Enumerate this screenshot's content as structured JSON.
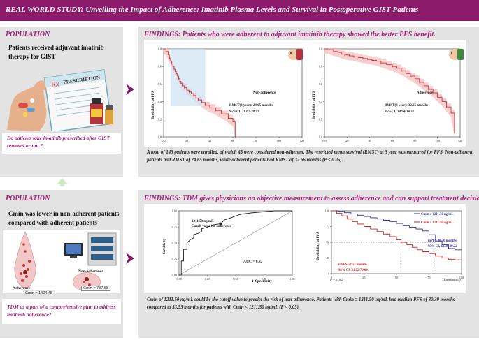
{
  "banner": {
    "title": "REAL WORLD STUDY: Unveiling the Impact of Adherence: Imatinib Plasma Levels and Survival in Postoperative GIST Patients"
  },
  "population1": {
    "title": "POPULATION",
    "text": "Patients received adjuvant imatinib therapy for GIST",
    "prescription_label": "PRESCRIPTION",
    "rx_label": "Rx",
    "question": "Do patients take imatinib prescribed after GIST removal or not ?"
  },
  "findings1": {
    "title": "FINDINGS: Patients who were adherent to adjuvant imatinib therapy showed the better PFS benefit.",
    "caption": "A total of 143 patients were enrolled, of which 45 were considered non-adherent. The restricted mean survival (RMST) at 3 year was measured for PFS. Non-adherent patients had RMST of 24.65 months, while adherent patients had RMST of 32.66 months (P < 0.05)."
  },
  "population2": {
    "title": "POPULATION",
    "text": "Cmin was lower in non-adherent patients compared with adherent patients",
    "adherence_label": "Adherence",
    "adherence_cmean": "C̄min = 1404.45",
    "non_adherence_label": "Non-adherence",
    "non_adherence_cmean": "C̄min = 737.68",
    "question": "TDM as a part of a comprehensive plan to address imatinib adherence?"
  },
  "findings2": {
    "title": "FINDINGS: TDM gives physicians an objective measurement to assess adherence and can support treatment decisions.",
    "caption": "Cmin of 1211.50 ng/mL could be the cutoff value to predict the risk of non-adherence. Patients with Cmin ≥ 1211.50 ng/mL had median PFS of 80.30 months compared to 53.53 months for patients with Cmin < 1211.50 ng/mL (P < 0.05)."
  },
  "chart_data": [
    {
      "type": "line",
      "name": "km-non-adherence",
      "ylabel": "Probability of PFS",
      "x_ticks": [
        "0.0",
        "20",
        "40",
        "60",
        "80",
        "100",
        "120"
      ],
      "y_ticks": [
        "0.0",
        "0.2",
        "0.4",
        "0.6",
        "0.8",
        "1.0"
      ],
      "xlim": [
        0,
        120
      ],
      "ylim": [
        0,
        1
      ],
      "group_label": "Non-adherence",
      "annotation": [
        "RMST(3 year): 24.65 months",
        "95%CI, 21.07-28.22"
      ],
      "x": [
        0,
        2,
        4,
        5,
        6,
        7,
        8,
        9,
        10,
        11,
        12,
        13,
        14,
        15,
        16,
        18,
        20,
        22,
        24,
        26,
        28,
        30,
        33,
        36,
        40,
        45,
        50,
        56,
        60,
        62
      ],
      "y": [
        1.0,
        0.97,
        0.93,
        0.89,
        0.86,
        0.83,
        0.8,
        0.77,
        0.74,
        0.72,
        0.69,
        0.66,
        0.63,
        0.61,
        0.58,
        0.56,
        0.53,
        0.51,
        0.49,
        0.47,
        0.44,
        0.42,
        0.39,
        0.36,
        0.33,
        0.3,
        0.26,
        0.21,
        0.17,
        0.0
      ]
    },
    {
      "type": "line",
      "name": "km-adherence",
      "ylabel": "Probability of PFS",
      "x_ticks": [
        "0.0",
        "20",
        "40",
        "60",
        "80",
        "100",
        "120"
      ],
      "y_ticks": [
        "0.0",
        "0.2",
        "0.4",
        "0.6",
        "0.8",
        "1.0"
      ],
      "xlim": [
        0,
        120
      ],
      "ylim": [
        0,
        1
      ],
      "group_label": "Adherence",
      "annotation": [
        "RMST(3 year): 32.66 months",
        "95%CI, 30.94-34.37"
      ],
      "x": [
        0,
        4,
        8,
        12,
        15,
        18,
        22,
        26,
        30,
        34,
        38,
        42,
        46,
        50,
        55,
        60,
        64,
        68,
        72,
        76,
        80,
        84,
        88,
        92,
        96,
        100,
        104,
        108,
        112,
        115
      ],
      "y": [
        1.0,
        0.99,
        0.97,
        0.96,
        0.94,
        0.93,
        0.92,
        0.91,
        0.9,
        0.89,
        0.88,
        0.87,
        0.86,
        0.84,
        0.82,
        0.8,
        0.78,
        0.75,
        0.72,
        0.69,
        0.66,
        0.62,
        0.58,
        0.54,
        0.5,
        0.45,
        0.4,
        0.34,
        0.27,
        0.05
      ]
    },
    {
      "type": "line",
      "name": "roc",
      "ylabel": "Sensitivity",
      "xlabel": "1-Specificity",
      "x_ticks": [
        "0.00",
        "0.25",
        "0.50",
        "0.75",
        "1.00"
      ],
      "y_ticks": [
        "0.00",
        "0.25",
        "0.50",
        "0.75",
        "1.00"
      ],
      "xlim": [
        0,
        1
      ],
      "ylim": [
        0,
        1
      ],
      "auc_label": "AUC = 0.82",
      "cutoff_label": [
        "1211.50 ng/mL",
        "Cutoff value for adherence"
      ],
      "cutoff_point": [
        0.37,
        0.8
      ],
      "x": [
        0,
        0.02,
        0.02,
        0.04,
        0.04,
        0.07,
        0.07,
        0.1,
        0.13,
        0.13,
        0.17,
        0.2,
        0.2,
        0.24,
        0.27,
        0.3,
        0.33,
        0.37,
        0.4,
        0.44,
        0.47,
        0.5,
        0.53,
        0.56,
        0.6,
        0.65,
        0.72,
        0.78,
        0.85,
        0.92,
        1.0
      ],
      "y": [
        0,
        0,
        0.22,
        0.22,
        0.4,
        0.4,
        0.5,
        0.55,
        0.58,
        0.63,
        0.65,
        0.68,
        0.72,
        0.74,
        0.76,
        0.78,
        0.79,
        0.8,
        0.86,
        0.88,
        0.9,
        0.92,
        0.94,
        0.95,
        0.96,
        0.97,
        0.98,
        0.99,
        1.0,
        1.0,
        1.0
      ]
    },
    {
      "type": "line",
      "name": "km-cmin",
      "ylabel": "Probability of PFS",
      "xlabel": "Time(month)",
      "x_ticks": [
        "0",
        "25",
        "50",
        "75",
        "100"
      ],
      "y_ticks": [
        "0",
        "25",
        "50",
        "75",
        "100"
      ],
      "xlim": [
        0,
        100
      ],
      "ylim": [
        0,
        100
      ],
      "p_value": "P = 0.012",
      "series": [
        {
          "name": "Cmin ≥ 1211.50 ng/mL",
          "color": "#2a2a9a",
          "x": [
            0,
            5,
            10,
            15,
            20,
            25,
            30,
            35,
            40,
            45,
            50,
            55,
            60,
            65,
            70,
            75,
            80,
            85,
            90,
            95,
            100
          ],
          "y": [
            100,
            99,
            97,
            95,
            93,
            91,
            89,
            87,
            85,
            83,
            80,
            77,
            74,
            71,
            68,
            62,
            52,
            46,
            40,
            38,
            38
          ],
          "median_label": [
            "mPFS 80.30 months",
            "95% CI, 61.38-99.22"
          ],
          "median_x": 80.3
        },
        {
          "name": "Cmin < 1211.50 ng/mL",
          "color": "#cc2020",
          "x": [
            0,
            4,
            8,
            12,
            16,
            20,
            25,
            30,
            35,
            40,
            45,
            50,
            53.5,
            58,
            62,
            66,
            70,
            75,
            80,
            85,
            90,
            95,
            100
          ],
          "y": [
            100,
            96,
            92,
            87,
            83,
            79,
            75,
            71,
            67,
            63,
            59,
            54,
            50,
            46,
            42,
            38,
            35,
            32,
            28,
            25,
            23,
            22,
            22
          ],
          "median_label": [
            "mPFS 53.53 months",
            "95% CI, 31.02-76.04"
          ],
          "median_x": 53.53
        }
      ]
    }
  ]
}
